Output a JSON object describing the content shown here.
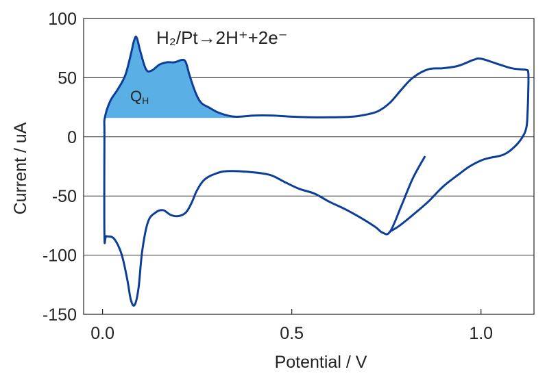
{
  "chart_data": {
    "type": "line",
    "title": "",
    "xlabel": "Potential / V",
    "ylabel": "Current / uA",
    "xlim": [
      -0.05,
      1.14
    ],
    "ylim": [
      -150,
      100
    ],
    "xticks": [
      0.0,
      0.5,
      1.0
    ],
    "xtick_labels": [
      "0.0",
      "0.5",
      "1.0"
    ],
    "yticks": [
      -150,
      -100,
      -50,
      0,
      50,
      100
    ],
    "ytick_labels": [
      "-150",
      "-100",
      "-50",
      "0",
      "50",
      "100"
    ],
    "grid": "horizontal",
    "legend": "none",
    "line_color": "#0d3e97",
    "fill_color": "#5aafe5",
    "annotations": {
      "reaction": "H₂/Pt→2H⁺+2e⁻",
      "region_label": "Q",
      "region_label_sub": "H"
    },
    "series": [
      {
        "values": [
          [
            0.851,
            -17
          ],
          [
            0.82,
            -35
          ],
          [
            0.79,
            -58
          ],
          [
            0.76,
            -80
          ],
          [
            0.74,
            -81
          ],
          [
            0.72,
            -76
          ],
          [
            0.68,
            -68
          ],
          [
            0.64,
            -61
          ],
          [
            0.6,
            -55
          ],
          [
            0.56,
            -48
          ],
          [
            0.52,
            -44
          ],
          [
            0.48,
            -38
          ],
          [
            0.44,
            -32
          ],
          [
            0.38,
            -29.5
          ],
          [
            0.33,
            -29
          ],
          [
            0.3,
            -31
          ],
          [
            0.27,
            -36
          ],
          [
            0.25,
            -45
          ],
          [
            0.235,
            -56
          ],
          [
            0.22,
            -64
          ],
          [
            0.2,
            -67
          ],
          [
            0.18,
            -66
          ],
          [
            0.16,
            -62
          ],
          [
            0.14,
            -64
          ],
          [
            0.12,
            -72
          ],
          [
            0.105,
            -96
          ],
          [
            0.095,
            -128
          ],
          [
            0.085,
            -142
          ],
          [
            0.075,
            -138
          ],
          [
            0.065,
            -120
          ],
          [
            0.05,
            -99
          ],
          [
            0.03,
            -86
          ],
          [
            0.01,
            -84
          ],
          [
            0.005,
            -83
          ],
          [
            0.005,
            0
          ],
          [
            0.006,
            16
          ],
          [
            0.02,
            30
          ],
          [
            0.04,
            40
          ],
          [
            0.06,
            52
          ],
          [
            0.075,
            70
          ],
          [
            0.083,
            81
          ],
          [
            0.09,
            84
          ],
          [
            0.1,
            72
          ],
          [
            0.115,
            57
          ],
          [
            0.13,
            56
          ],
          [
            0.15,
            61
          ],
          [
            0.17,
            63
          ],
          [
            0.19,
            63
          ],
          [
            0.21,
            65
          ],
          [
            0.22,
            63
          ],
          [
            0.23,
            52
          ],
          [
            0.245,
            38
          ],
          [
            0.26,
            29
          ],
          [
            0.28,
            25
          ],
          [
            0.31,
            20
          ],
          [
            0.35,
            17
          ],
          [
            0.4,
            18
          ],
          [
            0.45,
            18
          ],
          [
            0.5,
            17
          ],
          [
            0.55,
            16.5
          ],
          [
            0.6,
            16.5
          ],
          [
            0.66,
            17
          ],
          [
            0.7,
            19
          ],
          [
            0.73,
            22
          ],
          [
            0.76,
            29
          ],
          [
            0.79,
            40
          ],
          [
            0.82,
            50
          ],
          [
            0.86,
            57
          ],
          [
            0.9,
            58
          ],
          [
            0.94,
            60
          ],
          [
            0.98,
            65
          ],
          [
            1.0,
            66
          ],
          [
            1.04,
            62
          ],
          [
            1.08,
            58
          ],
          [
            1.105,
            57
          ],
          [
            1.12,
            56.5
          ],
          [
            1.125,
            54
          ],
          [
            1.125,
            40
          ],
          [
            1.123,
            20
          ],
          [
            1.12,
            8
          ],
          [
            1.11,
            0
          ],
          [
            1.09,
            -8
          ],
          [
            1.06,
            -15
          ],
          [
            1.02,
            -18
          ],
          [
            1.0,
            -20
          ],
          [
            0.97,
            -25
          ],
          [
            0.94,
            -32
          ],
          [
            0.9,
            -42
          ],
          [
            0.86,
            -55
          ],
          [
            0.82,
            -66
          ],
          [
            0.785,
            -75
          ],
          [
            0.76,
            -80
          ]
        ]
      }
    ],
    "shaded_region": {
      "baseline": 16,
      "x_start": 0.006,
      "x_end": 0.35
    }
  }
}
